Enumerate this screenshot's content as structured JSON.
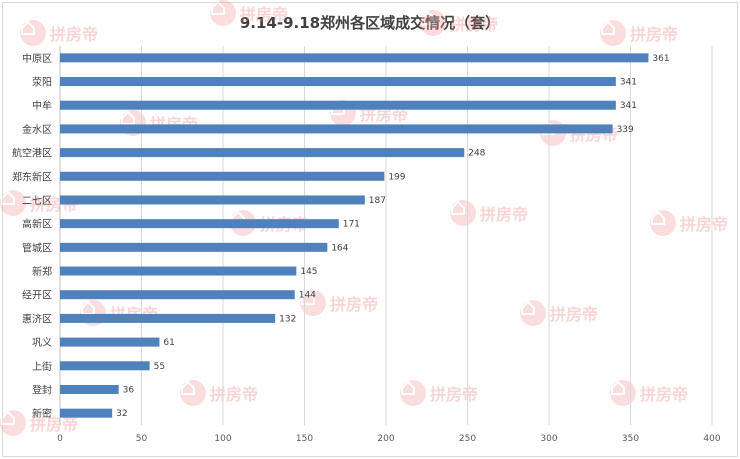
{
  "chart_data": {
    "type": "bar",
    "orientation": "horizontal",
    "title": "9.14-9.18郑州各区域成交情况（套）",
    "categories": [
      "中原区",
      "荥阳",
      "中牟",
      "金水区",
      "航空港区",
      "郑东新区",
      "二七区",
      "高新区",
      "管城区",
      "新郑",
      "经开区",
      "惠济区",
      "巩义",
      "上街",
      "登封",
      "新密"
    ],
    "values": [
      361,
      341,
      341,
      339,
      248,
      199,
      187,
      171,
      164,
      145,
      144,
      132,
      61,
      55,
      36,
      32
    ],
    "xlim": [
      0,
      400
    ],
    "xticks": [
      0,
      50,
      100,
      150,
      200,
      250,
      300,
      350,
      400
    ],
    "grid": "vertical",
    "legend": "none",
    "bar_color": "#4f81bd"
  },
  "watermark": {
    "text": "拼房帝",
    "color": "#f08a8a"
  }
}
